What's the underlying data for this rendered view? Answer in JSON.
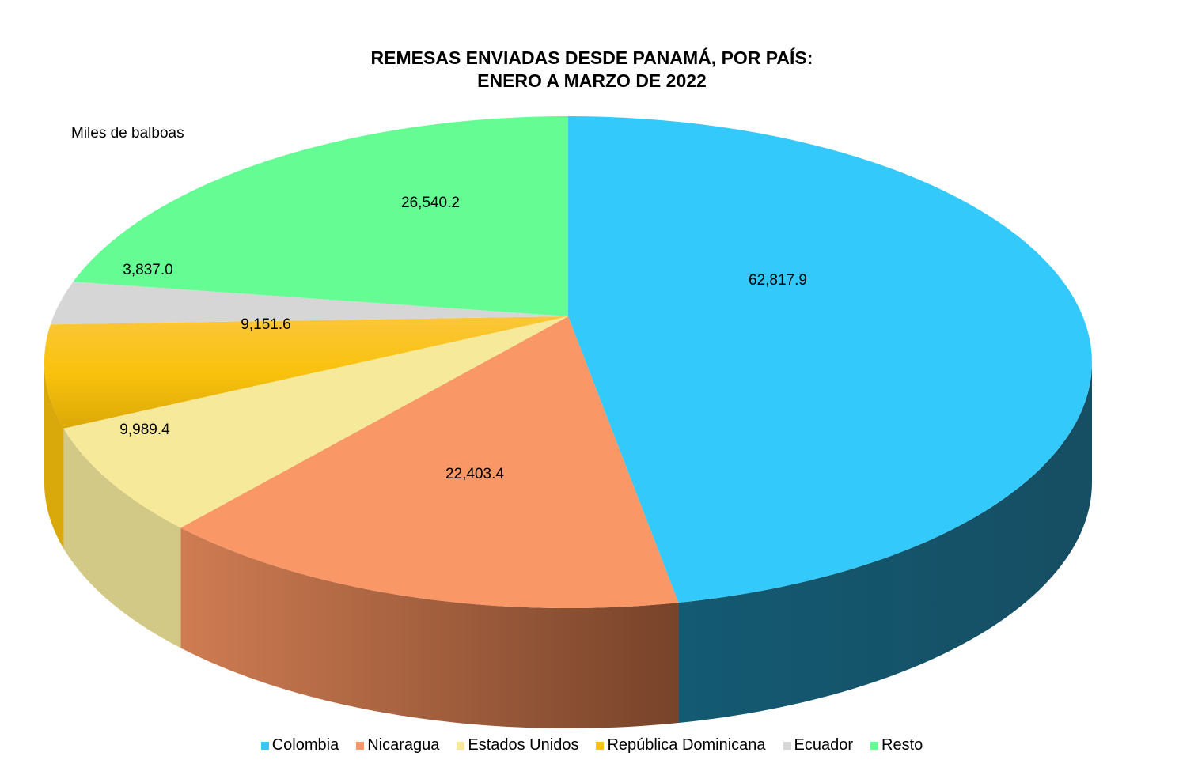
{
  "chart_data": {
    "type": "pie",
    "title": "REMESAS ENVIADAS DESDE PANAMÁ, POR PAÍS:",
    "subtitle": "ENERO A MARZO DE 2022",
    "unit_label": "Miles de balboas",
    "legend_position": "bottom",
    "three_d": true,
    "categories": [
      "Colombia",
      "Nicaragua",
      "Estados Unidos",
      "República Dominicana",
      "Ecuador",
      "Resto"
    ],
    "values": [
      62817.9,
      22403.4,
      9989.4,
      9151.6,
      3837.0,
      26540.2
    ],
    "data_labels": [
      "62,817.9",
      "22,403.4",
      "9,989.4",
      "9,151.6",
      "3,837.0",
      "26,540.2"
    ],
    "colors": [
      "#33c9fb",
      "#f99766",
      "#f7e99a",
      "#f9c20c",
      "#d6d6d6",
      "#66fc94"
    ]
  }
}
